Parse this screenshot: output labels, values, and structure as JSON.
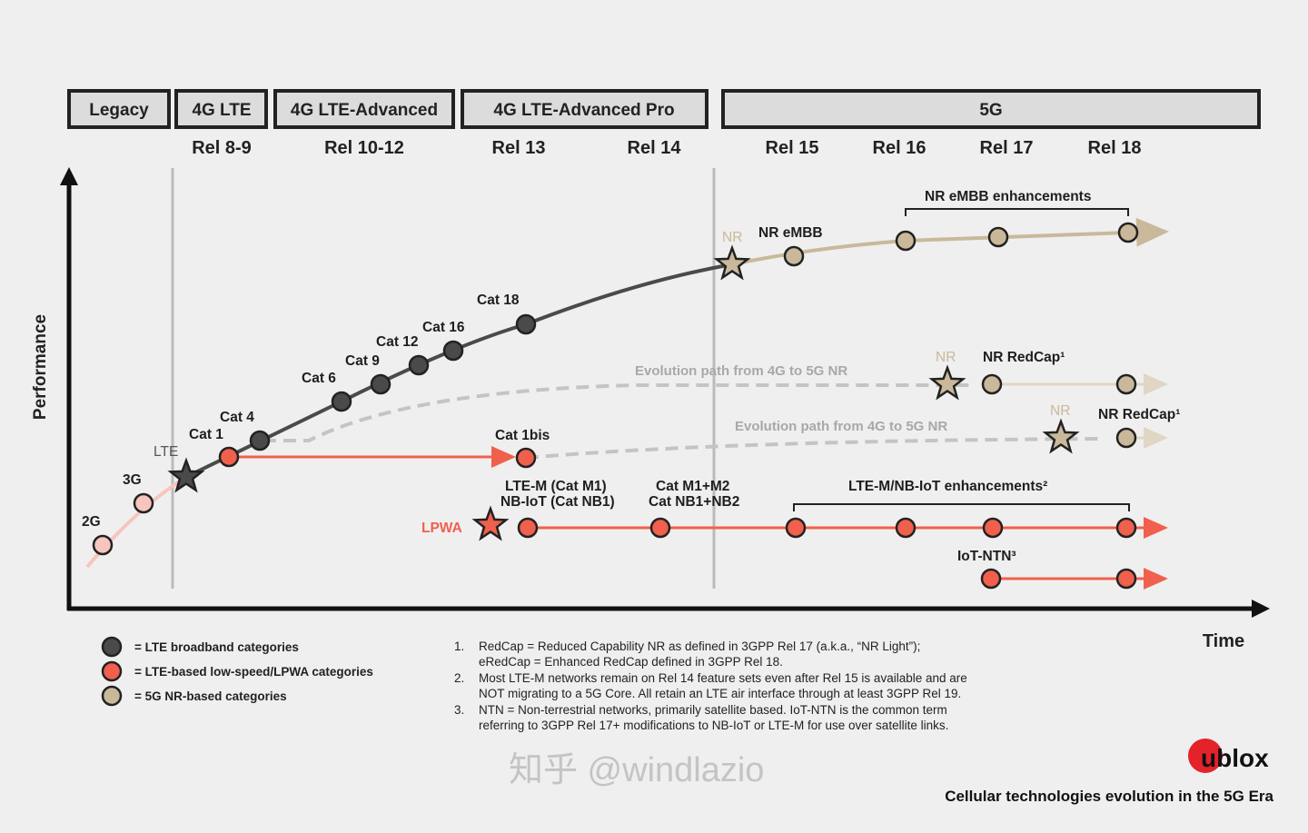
{
  "colors": {
    "lte": "#4a4a4a",
    "lpwa": "#f0604d",
    "nr": "#c9b99a",
    "legacy": "#f7c4be",
    "background": "#efefef"
  },
  "header": {
    "generations": [
      "Legacy",
      "4G LTE",
      "4G LTE-Advanced",
      "4G LTE-Advanced Pro",
      "5G"
    ],
    "releases": [
      "Rel 8-9",
      "Rel 10-12",
      "Rel 13",
      "Rel 14",
      "Rel 15",
      "Rel 16",
      "Rel 17",
      "Rel 18"
    ]
  },
  "axes": {
    "y_label": "Performance",
    "x_label": "Time"
  },
  "labels": {
    "g2": "2G",
    "g3": "3G",
    "lte": "LTE",
    "cat1": "Cat 1",
    "cat4": "Cat 4",
    "cat6": "Cat 6",
    "cat9": "Cat 9",
    "cat12": "Cat 12",
    "cat16": "Cat 16",
    "cat18": "Cat 18",
    "nr1": "NR",
    "nr_embb": "NR eMBB",
    "nr_embb_enh": "NR eMBB enhancements",
    "evo1": "Evolution path from 4G to 5G NR",
    "evo2": "Evolution path from 4G to 5G NR",
    "nr2": "NR",
    "redcap1": "NR RedCap¹",
    "nr3": "NR",
    "redcap2": "NR RedCap¹",
    "cat1bis": "Cat 1bis",
    "ltem": "LTE-M (Cat M1)",
    "nbiot": "NB-IoT (Cat NB1)",
    "catm2": "Cat M1+M2",
    "catnb2": "Cat NB1+NB2",
    "ltem_enh": "LTE-M/NB-IoT enhancements²",
    "lpwa": "LPWA",
    "iotntn": "IoT-NTN³"
  },
  "legend": [
    "= LTE broadband categories",
    "= LTE-based low-speed/LPWA categories",
    "= 5G NR-based categories"
  ],
  "footnotes": [
    {
      "num": "1.",
      "lines": [
        "RedCap = Reduced Capability NR as defined in 3GPP Rel 17 (a.k.a., “NR Light”);",
        "eRedCap = Enhanced RedCap defined in 3GPP Rel 18."
      ]
    },
    {
      "num": "2.",
      "lines": [
        "Most LTE-M networks remain on Rel 14 feature sets even after Rel 15 is available and are",
        "NOT migrating to a 5G Core. All retain an LTE air interface through at least 3GPP Rel 19."
      ]
    },
    {
      "num": "3.",
      "lines": [
        "NTN = Non-terrestrial networks, primarily satellite based. IoT-NTN is the common term",
        "referring to 3GPP Rel 17+ modifications to NB-IoT or LTE-M for use over satellite links."
      ]
    }
  ],
  "brand": {
    "logo": "ublox",
    "caption": "Cellular technologies evolution in the 5G Era",
    "watermark": "知乎 @windlazio"
  }
}
